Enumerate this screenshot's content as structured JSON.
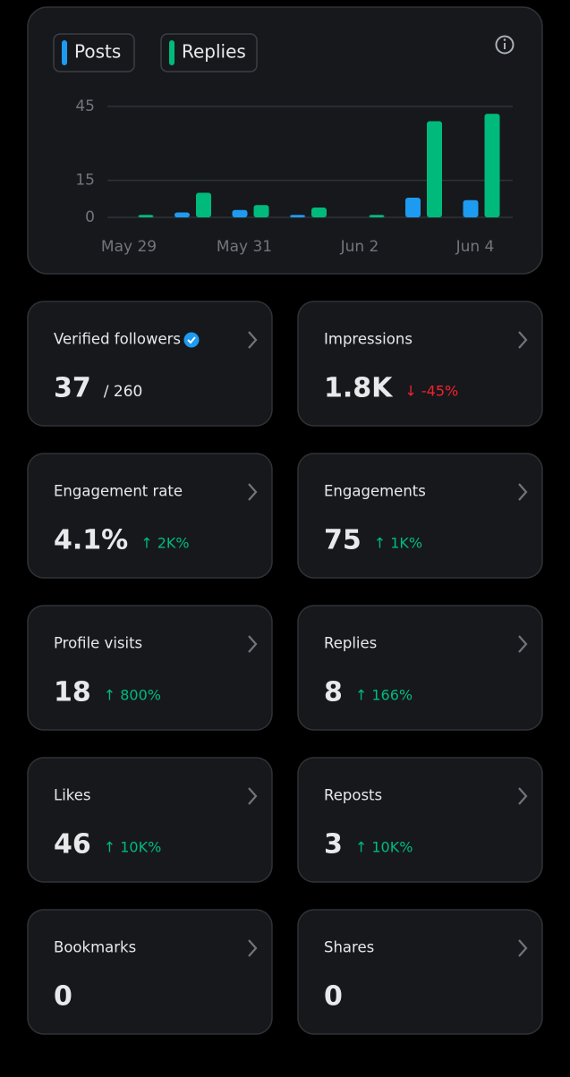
{
  "chart_data": {
    "type": "bar",
    "categories": [
      "May 29",
      null,
      "May 31",
      null,
      "Jun 2",
      null,
      "Jun 4"
    ],
    "series": [
      {
        "name": "Posts",
        "color": "#1d9bf0",
        "values": [
          0,
          2,
          3,
          1,
          0,
          8,
          7
        ]
      },
      {
        "name": "Replies",
        "color": "#00ba7c",
        "values": [
          1,
          10,
          5,
          4,
          1,
          39,
          42
        ]
      }
    ],
    "ylim": [
      0,
      45
    ],
    "yticks": [
      0,
      15,
      45
    ],
    "grid": true
  },
  "cards": [
    {
      "label": "Verified followers",
      "value": "37",
      "total": "/ 260"
    },
    {
      "label": "Impressions",
      "value": "1.8K",
      "change": "↓ -45%"
    },
    {
      "label": "Engagement rate",
      "value": "4.1%",
      "change": "↑ 2K%"
    },
    {
      "label": "Engagements",
      "value": "75",
      "change": "↑ 1K%"
    },
    {
      "label": "Profile visits",
      "value": "18",
      "change": "↑ 800%"
    },
    {
      "label": "Replies",
      "value": "8",
      "change": "↑ 166%"
    },
    {
      "label": "Likes",
      "value": "46",
      "change": "↑ 10K%"
    },
    {
      "label": "Reposts",
      "value": "3",
      "change": "↑ 10K%"
    },
    {
      "label": "Bookmarks",
      "value": "0"
    },
    {
      "label": "Shares",
      "value": "0"
    }
  ]
}
